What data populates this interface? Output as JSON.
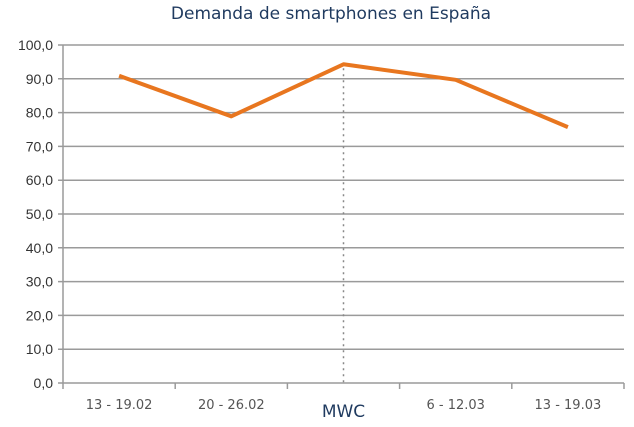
{
  "chart_data": {
    "type": "line",
    "title": "Demanda de smartphones en España",
    "categories": [
      "13 - 19.02",
      "20 - 26.02",
      "MWC",
      "6 - 12.03",
      "13 - 19.03"
    ],
    "series": [
      {
        "values": [
          90.9,
          78.9,
          94.3,
          89.7,
          75.7
        ],
        "color": "#e8761f"
      }
    ],
    "ylim": [
      0,
      100
    ],
    "yticks": [
      "0,0",
      "10,0",
      "20,0",
      "30,0",
      "40,0",
      "50,0",
      "60,0",
      "70,0",
      "80,0",
      "90,0",
      "100,0"
    ],
    "grid": true,
    "annotation": {
      "category": "MWC",
      "style": "dotted vertical line"
    },
    "xlabel": "",
    "ylabel": ""
  }
}
